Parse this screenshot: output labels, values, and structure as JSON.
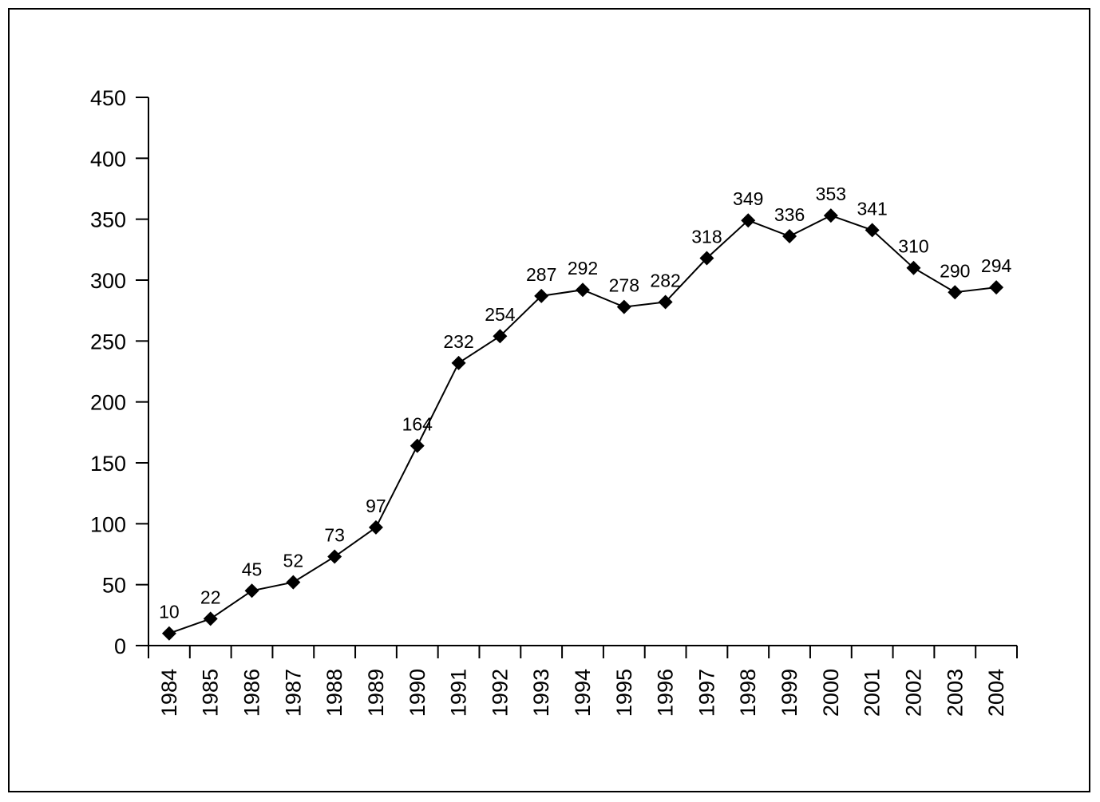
{
  "chart_data": {
    "type": "line",
    "title": "",
    "xlabel": "",
    "ylabel": "",
    "categories": [
      "1984",
      "1985",
      "1986",
      "1987",
      "1988",
      "1989",
      "1990",
      "1991",
      "1992",
      "1993",
      "1994",
      "1995",
      "1996",
      "1997",
      "1998",
      "1999",
      "2000",
      "2001",
      "2002",
      "2003",
      "2004"
    ],
    "series": [
      {
        "values": [
          10,
          22,
          45,
          52,
          73,
          97,
          164,
          232,
          254,
          287,
          292,
          278,
          282,
          318,
          349,
          336,
          353,
          341,
          310,
          290,
          294
        ],
        "marker": "diamond",
        "color": "#000000"
      }
    ],
    "data_labels": [
      "10",
      "22",
      "45",
      "52",
      "73",
      "97",
      "164",
      "232",
      "254",
      "287",
      "292",
      "278",
      "282",
      "318",
      "349",
      "336",
      "353",
      "341",
      "310",
      "290",
      "294"
    ],
    "ylim": [
      0,
      450
    ],
    "yticks": [
      0,
      50,
      100,
      150,
      200,
      250,
      300,
      350,
      400,
      450
    ],
    "ytick_labels": [
      "0",
      "50",
      "100",
      "150",
      "200",
      "250",
      "300",
      "350",
      "400",
      "450"
    ],
    "grid": false,
    "legend": "none",
    "x_tick_rotation": "vertical"
  }
}
